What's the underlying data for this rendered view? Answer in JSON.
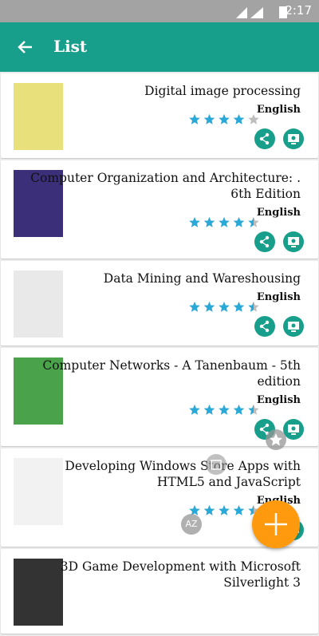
{
  "status_bar": {
    "time": "2:17"
  },
  "app_bar": {
    "title": "List"
  },
  "books": [
    {
      "title": "Digital image processing",
      "language": "English",
      "rating": 4
    },
    {
      "title": "Computer Organization and Architecture: . 6th Edition",
      "language": "English",
      "rating": 4.5
    },
    {
      "title": "Data Mining and Wareshousing",
      "language": "English",
      "rating": 4.5
    },
    {
      "title": "Computer Networks - A Tanenbaum - 5th edition",
      "language": "English",
      "rating": 4.5
    },
    {
      "title": "Developing Windows Store Apps with HTML5 and JavaScript",
      "language": "English",
      "rating": 4.5
    },
    {
      "title": "3D Game Development with Microsoft Silverlight 3"
    }
  ],
  "fab": {
    "sort_label": "AZ"
  }
}
